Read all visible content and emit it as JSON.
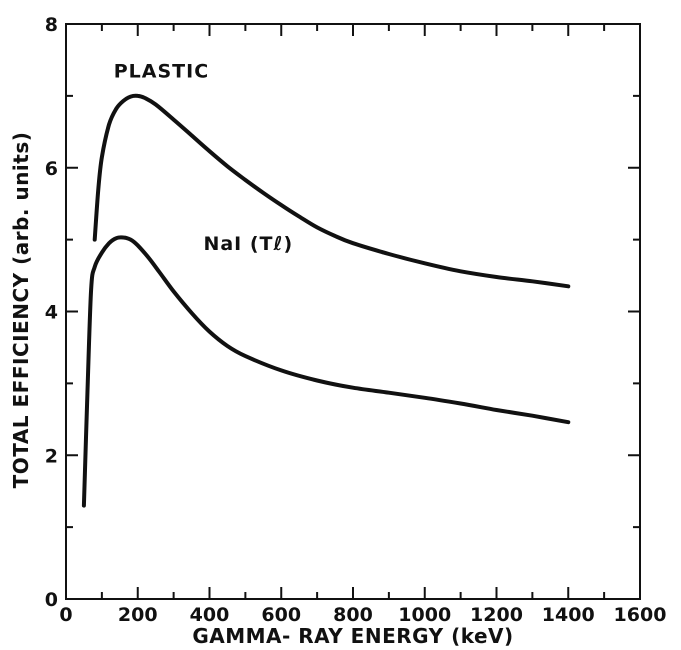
{
  "chart_data": {
    "type": "line",
    "title": "",
    "xlabel": "GAMMA- RAY ENERGY (keV)",
    "ylabel": "TOTAL EFFICIENCY (arb. units)",
    "xlim": [
      0,
      1600
    ],
    "ylim": [
      0,
      8
    ],
    "x_ticks": [
      0,
      200,
      400,
      600,
      800,
      1000,
      1200,
      1400,
      1600
    ],
    "y_ticks": [
      0,
      2,
      4,
      6,
      8
    ],
    "x_tick_labels": [
      "0",
      "200",
      "400",
      "600",
      "800",
      "1000",
      "1200",
      "1400",
      "1600"
    ],
    "y_tick_labels": [
      "0",
      "2",
      "4",
      "6",
      "8"
    ],
    "grid": false,
    "legend": "none",
    "series": [
      {
        "name": "PLASTIC",
        "x": [
          80,
          90,
          100,
          120,
          140,
          160,
          180,
          200,
          220,
          250,
          300,
          350,
          400,
          450,
          500,
          550,
          600,
          650,
          700,
          750,
          800,
          900,
          1000,
          1100,
          1200,
          1300,
          1400
        ],
        "y": [
          5.0,
          5.7,
          6.15,
          6.6,
          6.82,
          6.93,
          6.99,
          7.0,
          6.97,
          6.88,
          6.67,
          6.45,
          6.23,
          6.02,
          5.83,
          5.65,
          5.48,
          5.32,
          5.17,
          5.05,
          4.95,
          4.8,
          4.67,
          4.56,
          4.48,
          4.42,
          4.35
        ]
      },
      {
        "name": "NaI (Tℓ)",
        "x": [
          50,
          60,
          70,
          80,
          100,
          120,
          140,
          160,
          180,
          200,
          230,
          260,
          300,
          350,
          400,
          450,
          500,
          600,
          700,
          800,
          900,
          1000,
          1100,
          1200,
          1300,
          1400
        ],
        "y": [
          1.3,
          2.9,
          4.3,
          4.62,
          4.82,
          4.95,
          5.02,
          5.03,
          5.0,
          4.92,
          4.75,
          4.55,
          4.28,
          3.98,
          3.72,
          3.52,
          3.38,
          3.18,
          3.04,
          2.94,
          2.87,
          2.8,
          2.72,
          2.63,
          2.55,
          2.46
        ]
      }
    ],
    "annotations": [
      {
        "text": "PLASTIC",
        "x": 200,
        "y": 7.35,
        "series": 0
      },
      {
        "text": "NaI (Tℓ)",
        "x": 450,
        "y": 4.95,
        "series": 1
      }
    ]
  }
}
